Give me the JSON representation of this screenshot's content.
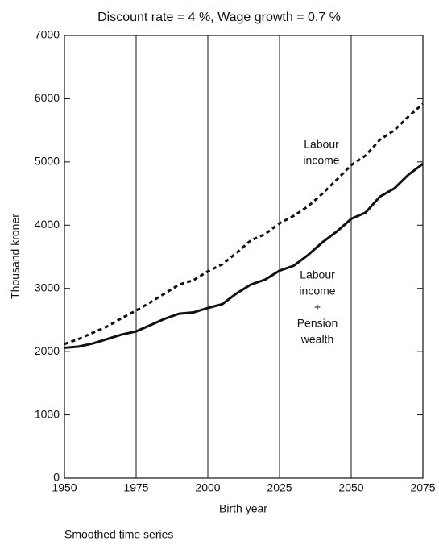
{
  "chart_data": {
    "type": "line",
    "subtitle": "Discount rate = 4 %, Wage growth = 0.7 %",
    "x_label": "Birth year",
    "y_label": "Thousand kroner",
    "note": "Smoothed time series",
    "x": [
      1950,
      1955,
      1960,
      1965,
      1970,
      1975,
      1980,
      1985,
      1990,
      1995,
      2000,
      2005,
      2010,
      2015,
      2020,
      2025,
      2030,
      2035,
      2040,
      2045,
      2050,
      2055,
      2060,
      2065,
      2070,
      2075
    ],
    "series": [
      {
        "name": "Labour income",
        "color": "#111111",
        "dash": true,
        "values": [
          2120,
          2200,
          2300,
          2400,
          2530,
          2650,
          2780,
          2920,
          3060,
          3130,
          3270,
          3380,
          3560,
          3760,
          3860,
          4030,
          4150,
          4300,
          4500,
          4720,
          4950,
          5100,
          5350,
          5500,
          5720,
          5920
        ]
      },
      {
        "name": "Labour income + Pension wealth",
        "color": "#111111",
        "dash": false,
        "values": [
          2060,
          2080,
          2130,
          2200,
          2270,
          2320,
          2420,
          2520,
          2600,
          2620,
          2690,
          2750,
          2920,
          3060,
          3140,
          3280,
          3360,
          3530,
          3730,
          3900,
          4100,
          4200,
          4450,
          4580,
          4800,
          4970
        ]
      }
    ],
    "annotations": [
      [
        "Labour",
        "income"
      ],
      [
        "Labour",
        "income",
        "+",
        "Pension",
        "wealth"
      ]
    ],
    "xlim": [
      1950,
      2075
    ],
    "xticks": [
      1950,
      1975,
      2000,
      2025,
      2050,
      2075
    ],
    "ylim": [
      0,
      7000
    ],
    "yticks": [
      0,
      1000,
      2000,
      3000,
      4000,
      5000,
      6000,
      7000
    ],
    "grid": "x"
  }
}
